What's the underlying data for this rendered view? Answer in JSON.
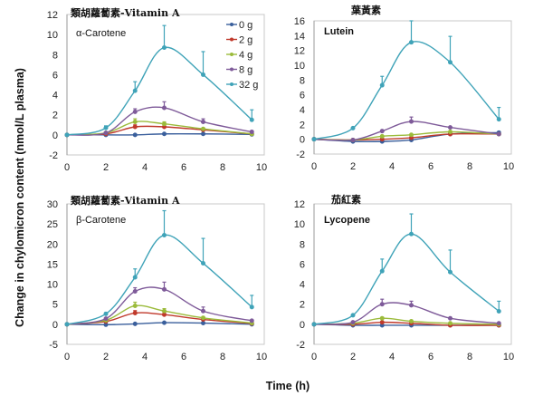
{
  "figure": {
    "ylabel": "Change in chylomicron content (nmol/L plasma)",
    "xlabel": "Time (h)"
  },
  "legend": [
    {
      "label": "0 g",
      "color": "#3a5f9c"
    },
    {
      "label": "2 g",
      "color": "#c0392b"
    },
    {
      "label": "4 g",
      "color": "#9bbb3b"
    },
    {
      "label": "8 g",
      "color": "#7e5a99"
    },
    {
      "label": "32 g",
      "color": "#3fa3b8"
    }
  ],
  "chart_data": [
    {
      "type": "line",
      "panel": "top-left",
      "title": "類胡蘿蔔素-Vitamin A",
      "subtitle": "α-Carotene",
      "xlabel": "Time (h)",
      "ylabel": "Change in chylomicron content (nmol/L plasma)",
      "xlim": [
        0,
        10
      ],
      "ylim": [
        -2,
        12
      ],
      "xticks": [
        0,
        2,
        4,
        6,
        8,
        10
      ],
      "yticks": [
        -2,
        0,
        2,
        4,
        6,
        8,
        10,
        12
      ],
      "x": [
        0,
        2,
        3.5,
        5,
        7,
        9.5
      ],
      "series": [
        {
          "name": "0 g",
          "values": [
            0,
            0,
            0,
            0.1,
            0.1,
            0.05
          ],
          "error": [
            0,
            0,
            0,
            0,
            0,
            0
          ]
        },
        {
          "name": "2 g",
          "values": [
            0,
            0.1,
            0.8,
            0.8,
            0.5,
            0.1
          ],
          "error": [
            0,
            0,
            0.2,
            0.2,
            0.1,
            0
          ]
        },
        {
          "name": "4 g",
          "values": [
            0,
            0.2,
            1.3,
            1.1,
            0.6,
            0.1
          ],
          "error": [
            0,
            0,
            0.3,
            0.2,
            0.1,
            0
          ]
        },
        {
          "name": "8 g",
          "values": [
            0,
            0.2,
            2.3,
            2.7,
            1.3,
            0.3
          ],
          "error": [
            0,
            0,
            0.3,
            0.6,
            0.3,
            0.1
          ]
        },
        {
          "name": "32 g",
          "values": [
            0,
            0.7,
            4.4,
            8.7,
            6.0,
            1.5
          ],
          "error": [
            0,
            0.2,
            0.9,
            2.2,
            2.3,
            1.0
          ]
        }
      ],
      "legend_position": "top-right"
    },
    {
      "type": "line",
      "panel": "top-right",
      "title": "葉黃素",
      "subtitle": "Lutein",
      "xlim": [
        0,
        10
      ],
      "ylim": [
        -2,
        16
      ],
      "xticks": [
        0,
        2,
        4,
        6,
        8,
        10
      ],
      "yticks": [
        -2,
        0,
        2,
        4,
        6,
        8,
        10,
        12,
        14,
        16
      ],
      "x": [
        0,
        2,
        3.5,
        5,
        7,
        9.5
      ],
      "series": [
        {
          "name": "0 g",
          "values": [
            0,
            -0.3,
            -0.3,
            -0.1,
            0.7,
            0.9
          ],
          "error": [
            0,
            0,
            0,
            0,
            0,
            0
          ]
        },
        {
          "name": "2 g",
          "values": [
            0,
            -0.1,
            0,
            0.2,
            0.7,
            0.7
          ],
          "error": [
            0,
            0,
            0,
            0,
            0,
            0
          ]
        },
        {
          "name": "4 g",
          "values": [
            0,
            -0.1,
            0.4,
            0.6,
            1.0,
            0.7
          ],
          "error": [
            0,
            0,
            0,
            0,
            0.1,
            0
          ]
        },
        {
          "name": "8 g",
          "values": [
            0,
            -0.1,
            1.1,
            2.4,
            1.6,
            0.7
          ],
          "error": [
            0,
            0,
            0.1,
            0.6,
            0.1,
            0
          ]
        },
        {
          "name": "32 g",
          "values": [
            0,
            1.5,
            7.3,
            13.1,
            10.4,
            2.7
          ],
          "error": [
            0,
            0,
            1.2,
            2.9,
            3.5,
            1.6
          ]
        }
      ]
    },
    {
      "type": "line",
      "panel": "bottom-left",
      "title": "類胡蘿蔔素-Vitamin A",
      "subtitle": "β-Carotene",
      "xlim": [
        0,
        10
      ],
      "ylim": [
        -5,
        30
      ],
      "xticks": [
        0,
        2,
        4,
        6,
        8,
        10
      ],
      "yticks": [
        -5,
        0,
        5,
        10,
        15,
        20,
        25,
        30
      ],
      "x": [
        0,
        2,
        3.5,
        5,
        7,
        9.5
      ],
      "series": [
        {
          "name": "0 g",
          "values": [
            0,
            -0.1,
            0.1,
            0.4,
            0.3,
            0
          ],
          "error": [
            0,
            0,
            0,
            0,
            0,
            0
          ]
        },
        {
          "name": "2 g",
          "values": [
            0,
            0.7,
            2.8,
            2.4,
            1.2,
            0.2
          ],
          "error": [
            0,
            0,
            0.6,
            0.5,
            0.2,
            0
          ]
        },
        {
          "name": "4 g",
          "values": [
            0,
            1.0,
            4.6,
            3.3,
            1.6,
            0.3
          ],
          "error": [
            0,
            0,
            0.9,
            0.6,
            0.3,
            0
          ]
        },
        {
          "name": "8 g",
          "values": [
            0,
            1.4,
            8.2,
            8.7,
            3.3,
            0.9
          ],
          "error": [
            0,
            0,
            0.9,
            1.8,
            1.0,
            0.2
          ]
        },
        {
          "name": "32 g",
          "values": [
            0,
            2.6,
            11.7,
            22.2,
            15.2,
            4.3
          ],
          "error": [
            0,
            0.3,
            2.1,
            6.1,
            6.2,
            2.9
          ]
        }
      ]
    },
    {
      "type": "line",
      "panel": "bottom-right",
      "title": "茄紅素",
      "subtitle": "Lycopene",
      "xlim": [
        0,
        10
      ],
      "ylim": [
        -2,
        12
      ],
      "xticks": [
        0,
        2,
        4,
        6,
        8,
        10
      ],
      "yticks": [
        -2,
        0,
        2,
        4,
        6,
        8,
        10,
        12
      ],
      "x": [
        0,
        2,
        3.5,
        5,
        7,
        9.5
      ],
      "series": [
        {
          "name": "0 g",
          "values": [
            0,
            -0.1,
            -0.1,
            -0.1,
            -0.1,
            -0.1
          ],
          "error": [
            0,
            0,
            0,
            0,
            0,
            0
          ]
        },
        {
          "name": "2 g",
          "values": [
            0,
            0,
            0.2,
            0.1,
            -0.1,
            -0.1
          ],
          "error": [
            0,
            0,
            0,
            0,
            0,
            0
          ]
        },
        {
          "name": "4 g",
          "values": [
            0,
            0.1,
            0.6,
            0.3,
            0.1,
            0
          ],
          "error": [
            0,
            0,
            0.1,
            0.1,
            0,
            0
          ]
        },
        {
          "name": "8 g",
          "values": [
            0,
            0.2,
            2.0,
            1.9,
            0.6,
            0.1
          ],
          "error": [
            0,
            0,
            0.5,
            0.4,
            0.1,
            0
          ]
        },
        {
          "name": "32 g",
          "values": [
            0,
            0.9,
            5.3,
            9.0,
            5.2,
            1.3
          ],
          "error": [
            0,
            0,
            1.2,
            2.0,
            2.2,
            1.0
          ]
        }
      ]
    }
  ]
}
